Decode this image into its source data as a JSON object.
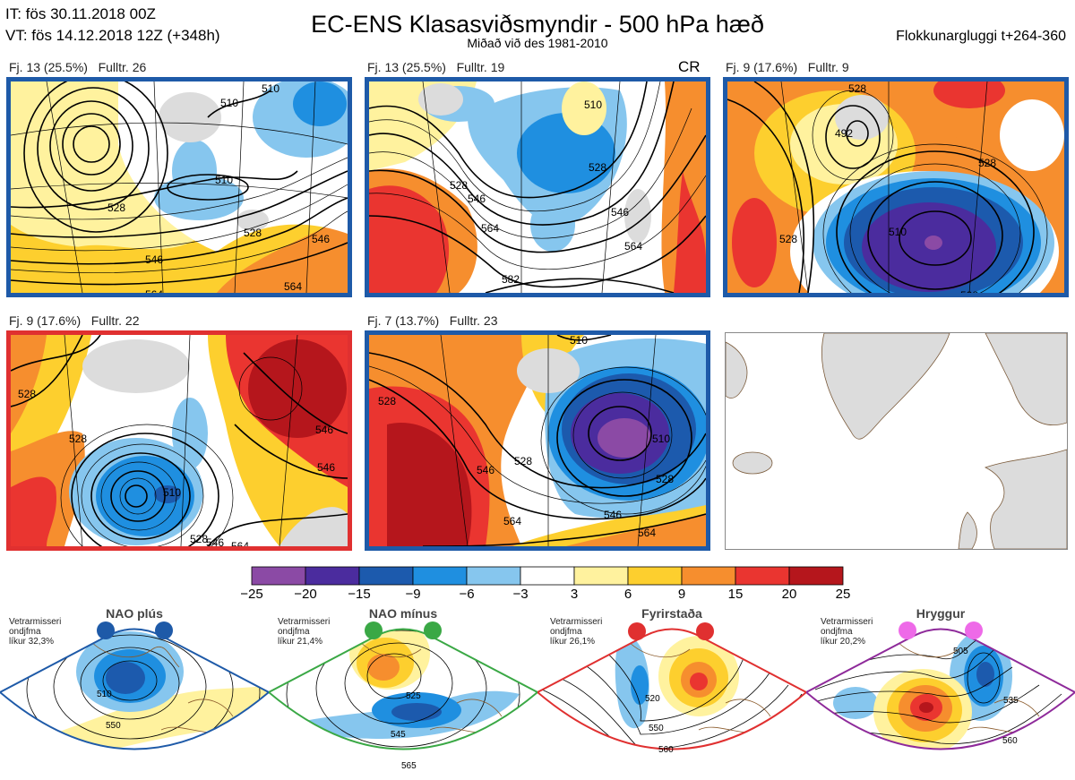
{
  "header": {
    "it": "IT: fös 30.11.2018 00Z",
    "vt": "VT: fös 14.12.2018 12Z  (+348h)",
    "title": "EC-ENS Klasasviðsmyndir - 500 hPa hæð",
    "subtitle": "Miðað við des 1981-2010",
    "window": "Flokkunargluggi t+264-360"
  },
  "panels": [
    {
      "label": "Fj. 13 (25.5%)   Fulltr. 26",
      "border": "#1e5aa8",
      "contours": [
        "510",
        "510",
        "528",
        "546",
        "564",
        "546",
        "528",
        "510"
      ],
      "cr": ""
    },
    {
      "label": "Fj. 13 (25.5%)   Fulltr. 19",
      "border": "#1e5aa8",
      "contours": [
        "510",
        "528",
        "528",
        "546",
        "564",
        "546",
        "582",
        "564"
      ],
      "cr": "CR"
    },
    {
      "label": "Fj. 9 (17.6%)   Fulltr. 9",
      "border": "#1e5aa8",
      "contours": [
        "492",
        "528",
        "510",
        "528",
        "528"
      ],
      "cr": ""
    },
    {
      "label": "Fj. 9 (17.6%)   Fulltr. 22",
      "border": "#e03030",
      "contours": [
        "528",
        "528",
        "510",
        "546",
        "546",
        "528",
        "546",
        "564"
      ],
      "cr": ""
    },
    {
      "label": "Fj. 7 (13.7%)   Fulltr. 23",
      "border": "#1e5aa8",
      "contours": [
        "510",
        "528",
        "546",
        "528",
        "510",
        "528",
        "546",
        "564",
        "564"
      ],
      "cr": ""
    }
  ],
  "colorbar": {
    "colors": [
      "#8b4aa5",
      "#4b2c9e",
      "#1c5aad",
      "#1f8fe0",
      "#86c6ee",
      "#ffffff",
      "#fff29e",
      "#fdcf2e",
      "#f68e2e",
      "#ea3530",
      "#b5161c"
    ],
    "labels": [
      "−25",
      "−20",
      "−15",
      "−9",
      "−6",
      "−3",
      "3",
      "6",
      "9",
      "15",
      "20",
      "25"
    ]
  },
  "regimes": [
    {
      "name": "NAO plús",
      "info": "Vetrarmisseri\nondjfma\nlíkur 32,3%",
      "color": "#1e5aa8",
      "contours": [
        "510",
        "550"
      ]
    },
    {
      "name": "NAO mínus",
      "info": "Vetrarmisseri\nondjfma\nlíkur 21,4%",
      "color": "#3aa845",
      "contours": [
        "525",
        "545",
        "565"
      ]
    },
    {
      "name": "Fyrirstaða",
      "info": "Vetrarmisseri\nondjfma\nlíkur 26,1%",
      "color": "#e03030",
      "contours": [
        "520",
        "550",
        "560"
      ]
    },
    {
      "name": "Hryggur",
      "info": "Vetrarmisseri\nondjfma\nlíkur 20,2%",
      "color": "#8e2a9a",
      "contours": [
        "505",
        "535",
        "560"
      ]
    }
  ]
}
